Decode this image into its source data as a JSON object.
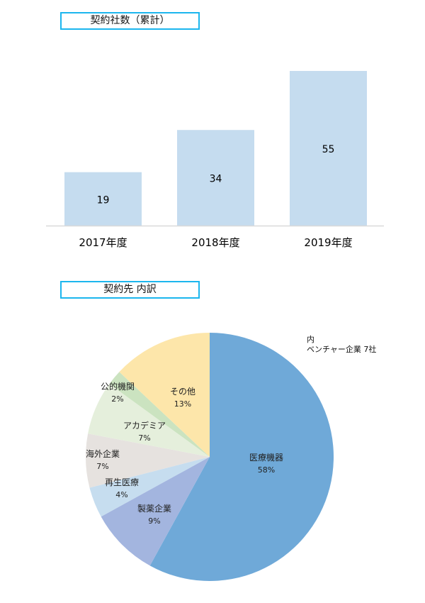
{
  "chart_data": [
    {
      "type": "bar",
      "title": "契約社数（累計）",
      "categories": [
        "2017年度",
        "2018年度",
        "2019年度"
      ],
      "values": [
        19,
        34,
        55
      ],
      "ylim": [
        0,
        58
      ],
      "grid": false,
      "color": "#c5dcef"
    },
    {
      "type": "pie",
      "title": "契約先 内訳",
      "annotation": [
        "内",
        "ベンチャー企業 7社"
      ],
      "slices": [
        {
          "label": "医療機器",
          "value": 58,
          "pct": "58%",
          "color": "#6fa9d8"
        },
        {
          "label": "製薬企業",
          "value": 9,
          "pct": "9%",
          "color": "#a3b5df"
        },
        {
          "label": "再生医療",
          "value": 4,
          "pct": "4%",
          "color": "#c6ddef"
        },
        {
          "label": "海外企業",
          "value": 7,
          "pct": "7%",
          "color": "#e6e2df"
        },
        {
          "label": "アカデミア",
          "value": 7,
          "pct": "7%",
          "color": "#e5efdc"
        },
        {
          "label": "公的機関",
          "value": 2,
          "pct": "2%",
          "color": "#cbe3c0"
        },
        {
          "label": "その他",
          "value": 13,
          "pct": "13%",
          "color": "#fde6aa"
        }
      ]
    }
  ]
}
